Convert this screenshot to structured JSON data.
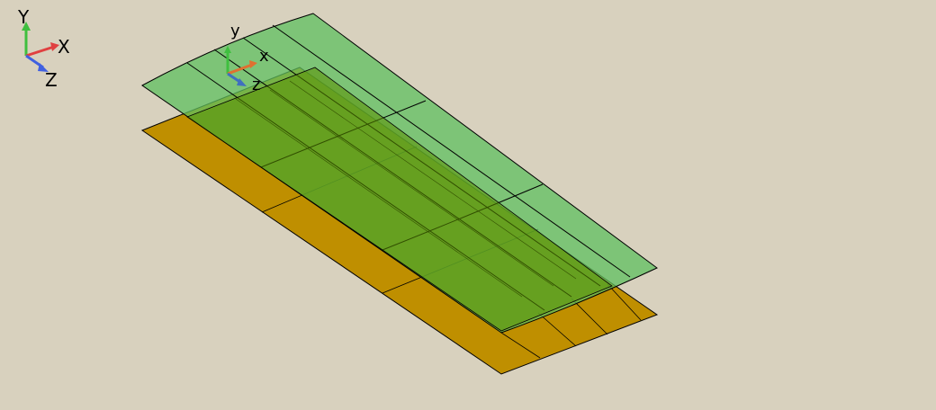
{
  "viewport": {
    "background": "#d8d1be"
  },
  "global_triad": {
    "labels": {
      "y": "Y",
      "x": "X",
      "z": "Z"
    },
    "colors": {
      "y": "#3fbf3f",
      "x": "#e04040",
      "z": "#4060e0"
    },
    "icon": "global-axes-triad-icon"
  },
  "local_triad": {
    "labels": {
      "y": "y",
      "x": "x",
      "z": "z"
    },
    "colors": {
      "y": "#3fbf3f",
      "x": "#e07030",
      "z": "#3f6fbf"
    },
    "icon": "local-axes-triad-icon"
  },
  "surfaces": {
    "lower": {
      "fill": "#bf8f00",
      "stroke": "#000000"
    },
    "upper": {
      "fill": "#5fbf5f",
      "opacity": 0.75,
      "stroke": "#000000"
    }
  }
}
